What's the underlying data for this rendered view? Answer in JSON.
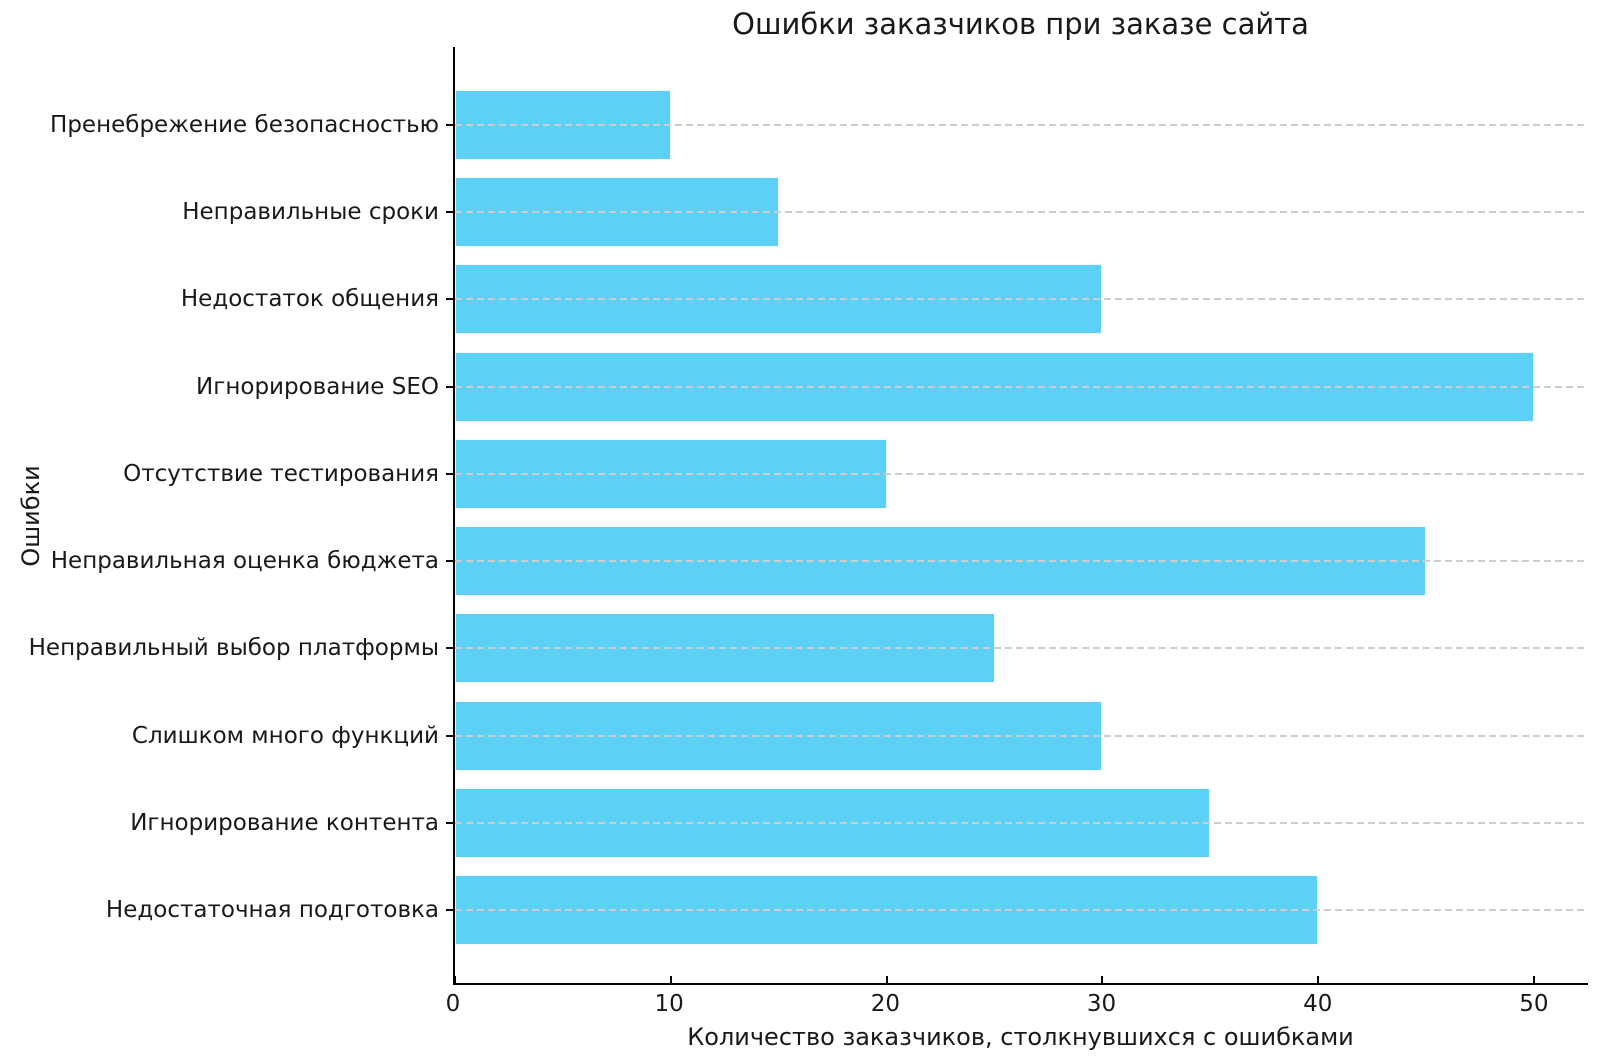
{
  "figure": {
    "background": "#ffffff"
  },
  "chart_data": {
    "type": "bar",
    "orientation": "horizontal",
    "title": "Ошибки заказчиков при заказе сайта",
    "xlabel": "Количество заказчиков, столкнувшихся с ошибками",
    "ylabel": "Ошибки",
    "categories": [
      "Пренебрежение безопасностью",
      "Неправильные сроки",
      "Недостаток общения",
      "Игнорирование SEO",
      "Отсутствие тестирования",
      "Неправильная оценка бюджета",
      "Неправильный выбор платформы",
      "Слишком много функций",
      "Игнорирование контента",
      "Недостаточная подготовка"
    ],
    "values": [
      10,
      15,
      30,
      50,
      20,
      45,
      25,
      30,
      35,
      40
    ],
    "xticks": [
      0,
      10,
      20,
      30,
      40,
      50
    ],
    "xlim": [
      0,
      52.5
    ],
    "grid": "horizontal-dashed",
    "grid_above_bars": true,
    "legend_position": "none",
    "bar_color": "#5CD1F5",
    "bar_edge_color": "#FFFFFF",
    "grid_color": "#CDCDCD",
    "spine_color": "#000000",
    "text_color": "#191919"
  }
}
